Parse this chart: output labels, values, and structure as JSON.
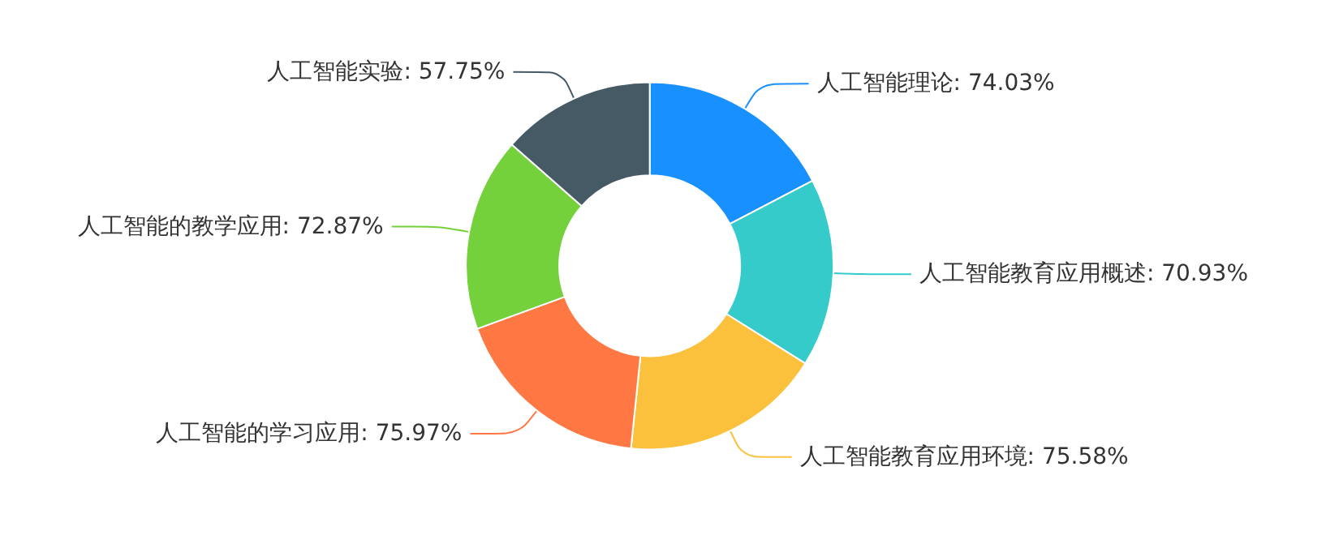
{
  "chart_data": {
    "type": "donut",
    "categories": [
      "人工智能理论",
      "人工智能教育应用概述",
      "人工智能教育应用环境",
      "人工智能的学习应用",
      "人工智能的教学应用",
      "人工智能实验"
    ],
    "values": [
      74.03,
      70.93,
      75.58,
      75.97,
      72.87,
      57.75
    ],
    "colors": [
      "#1890ff",
      "#36cbcb",
      "#fbc13c",
      "#ff7843",
      "#74d13c",
      "#465a66"
    ],
    "value_labels": [
      ": 74.03%",
      ": 70.93%",
      ": 75.58%",
      ": 75.97%",
      ": 72.87%",
      ": 57.75%"
    ],
    "legend": false
  }
}
